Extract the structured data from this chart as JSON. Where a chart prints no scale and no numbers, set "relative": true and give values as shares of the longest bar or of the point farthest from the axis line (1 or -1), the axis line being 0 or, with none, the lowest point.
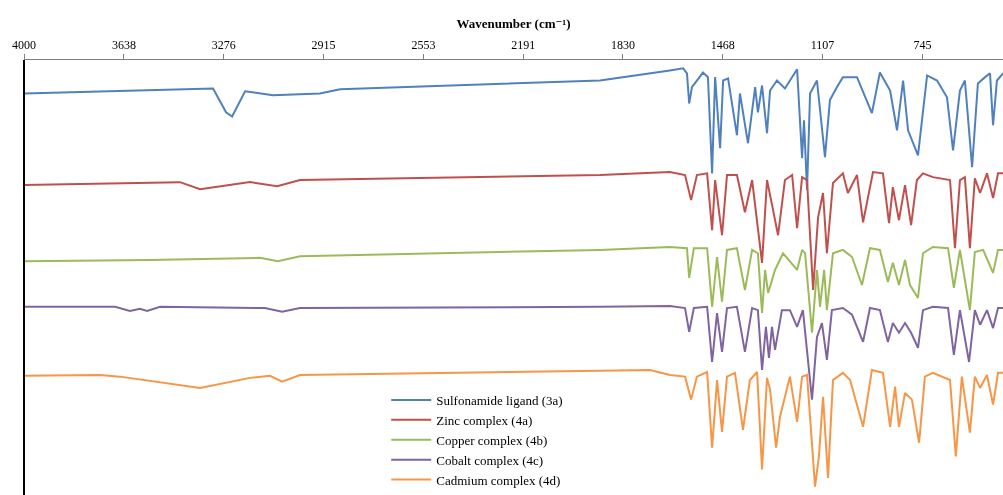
{
  "chart_data": {
    "type": "line",
    "xlabel": "Wavenumber (cm⁻¹)",
    "relative": true,
    "legend": "bottom",
    "xlim": [
      4000,
      453
    ],
    "xticks": [
      4000,
      3638,
      3276,
      2915,
      2553,
      2191,
      1830,
      1468,
      1107,
      745
    ],
    "series": [
      {
        "name": "Sulfonamide ligand (3a)",
        "color": "#4f81bd",
        "x": [
          4000,
          3315,
          3268,
          3246,
          3199,
          3098,
          2928,
          2855,
          1913,
          1660,
          1612,
          1598,
          1590,
          1580,
          1540,
          1522,
          1507,
          1496,
          1478,
          1467,
          1449,
          1417,
          1406,
          1377,
          1351,
          1341,
          1326,
          1308,
          1297,
          1272,
          1243,
          1199,
          1181,
          1174,
          1163,
          1152,
          1127,
          1098,
          1080,
          1055,
          1033,
          982,
          928,
          899,
          862,
          837,
          815,
          797,
          761,
          728,
          692,
          656,
          634,
          609,
          591,
          565,
          544,
          518,
          500,
          489,
          475,
          453
        ],
        "values": [
          0.94,
          0.952,
          0.895,
          0.885,
          0.945,
          0.936,
          0.94,
          0.95,
          0.971,
          0.995,
          1.0,
          0.988,
          0.916,
          0.955,
          0.99,
          0.979,
          0.749,
          0.979,
          0.809,
          0.971,
          0.976,
          0.84,
          0.94,
          0.821,
          0.955,
          0.895,
          0.959,
          0.845,
          0.947,
          0.971,
          0.952,
          0.998,
          0.785,
          0.876,
          0.709,
          0.94,
          0.971,
          0.788,
          0.924,
          0.955,
          0.979,
          0.979,
          0.893,
          0.99,
          0.947,
          0.852,
          0.971,
          0.852,
          0.792,
          0.983,
          0.971,
          0.931,
          0.804,
          0.947,
          0.971,
          0.764,
          0.964,
          0.979,
          0.988,
          0.864,
          0.971,
          0.988
        ]
      },
      {
        "name": "Zinc complex (4a)",
        "color": "#c0504d",
        "x": [
          4000,
          3435,
          3362,
          3181,
          3083,
          3000,
          1913,
          1660,
          1605,
          1583,
          1562,
          1525,
          1507,
          1496,
          1471,
          1453,
          1417,
          1388,
          1362,
          1326,
          1308,
          1286,
          1268,
          1243,
          1217,
          1199,
          1181,
          1163,
          1141,
          1123,
          1105,
          1091,
          1069,
          1033,
          1015,
          982,
          960,
          924,
          888,
          866,
          852,
          830,
          808,
          786,
          765,
          743,
          707,
          645,
          627,
          609,
          591,
          573,
          555,
          536,
          511,
          489,
          471,
          453
        ],
        "values": [
          0.721,
          0.728,
          0.711,
          0.728,
          0.718,
          0.733,
          0.745,
          0.752,
          0.745,
          0.685,
          0.745,
          0.749,
          0.613,
          0.733,
          0.601,
          0.745,
          0.745,
          0.656,
          0.733,
          0.535,
          0.733,
          0.661,
          0.601,
          0.733,
          0.745,
          0.618,
          0.74,
          0.733,
          0.47,
          0.644,
          0.702,
          0.558,
          0.726,
          0.749,
          0.702,
          0.745,
          0.632,
          0.752,
          0.749,
          0.63,
          0.716,
          0.637,
          0.721,
          0.625,
          0.733,
          0.749,
          0.74,
          0.733,
          0.57,
          0.733,
          0.74,
          0.57,
          0.737,
          0.702,
          0.749,
          0.69,
          0.749,
          0.749
        ]
      },
      {
        "name": "Copper complex (4b)",
        "color": "#9bbb59",
        "x": [
          4000,
          3544,
          3145,
          3080,
          3000,
          1913,
          1660,
          1598,
          1590,
          1573,
          1525,
          1507,
          1489,
          1471,
          1453,
          1417,
          1388,
          1362,
          1341,
          1326,
          1315,
          1304,
          1279,
          1250,
          1199,
          1181,
          1170,
          1145,
          1127,
          1116,
          1101,
          1091,
          1069,
          1033,
          1000,
          964,
          935,
          899,
          870,
          852,
          830,
          808,
          790,
          761,
          743,
          707,
          652,
          631,
          609,
          573,
          555,
          525,
          489,
          471,
          453
        ],
        "values": [
          0.539,
          0.542,
          0.547,
          0.539,
          0.551,
          0.566,
          0.573,
          0.57,
          0.499,
          0.57,
          0.57,
          0.43,
          0.549,
          0.442,
          0.566,
          0.57,
          0.47,
          0.566,
          0.558,
          0.415,
          0.518,
          0.463,
          0.518,
          0.558,
          0.518,
          0.566,
          0.558,
          0.368,
          0.518,
          0.43,
          0.518,
          0.422,
          0.558,
          0.566,
          0.549,
          0.482,
          0.57,
          0.566,
          0.489,
          0.535,
          0.482,
          0.542,
          0.482,
          0.451,
          0.558,
          0.573,
          0.57,
          0.475,
          0.566,
          0.422,
          0.561,
          0.566,
          0.511,
          0.566,
          0.566
        ]
      },
      {
        "name": "Cobalt complex (4c)",
        "color": "#8064a2",
        "x": [
          4000,
          3670,
          3616,
          3580,
          3554,
          3507,
          3127,
          3065,
          3000,
          1913,
          1660,
          1605,
          1590,
          1573,
          1525,
          1507,
          1489,
          1471,
          1453,
          1417,
          1388,
          1362,
          1341,
          1326,
          1312,
          1301,
          1290,
          1279,
          1254,
          1225,
          1199,
          1178,
          1145,
          1127,
          1109,
          1091,
          1073,
          1033,
          1000,
          960,
          935,
          899,
          870,
          852,
          830,
          808,
          786,
          761,
          743,
          707,
          652,
          631,
          609,
          576,
          555,
          536,
          511,
          489,
          471,
          453
        ],
        "values": [
          0.43,
          0.43,
          0.42,
          0.425,
          0.42,
          0.43,
          0.427,
          0.418,
          0.427,
          0.43,
          0.432,
          0.427,
          0.37,
          0.427,
          0.43,
          0.298,
          0.415,
          0.322,
          0.427,
          0.43,
          0.322,
          0.427,
          0.422,
          0.279,
          0.382,
          0.308,
          0.382,
          0.327,
          0.422,
          0.422,
          0.382,
          0.422,
          0.208,
          0.358,
          0.391,
          0.303,
          0.422,
          0.427,
          0.411,
          0.346,
          0.427,
          0.422,
          0.346,
          0.391,
          0.368,
          0.391,
          0.368,
          0.332,
          0.422,
          0.43,
          0.427,
          0.315,
          0.422,
          0.298,
          0.422,
          0.387,
          0.422,
          0.379,
          0.427,
          0.427
        ]
      },
      {
        "name": "Cadmium complex (4d)",
        "color": "#f79646",
        "x": [
          4000,
          3725,
          3652,
          3362,
          3181,
          3109,
          3065,
          3000,
          1913,
          1732,
          1678,
          1660,
          1605,
          1583,
          1562,
          1525,
          1507,
          1489,
          1471,
          1453,
          1424,
          1395,
          1370,
          1344,
          1326,
          1308,
          1297,
          1275,
          1261,
          1225,
          1199,
          1181,
          1163,
          1134,
          1120,
          1105,
          1087,
          1069,
          1033,
          1007,
          960,
          928,
          888,
          862,
          844,
          830,
          808,
          783,
          757,
          736,
          707,
          645,
          624,
          602,
          573,
          555,
          536,
          511,
          489,
          471,
          453
        ],
        "values": [
          0.265,
          0.267,
          0.263,
          0.236,
          0.26,
          0.265,
          0.251,
          0.267,
          0.277,
          0.279,
          0.27,
          0.267,
          0.263,
          0.208,
          0.263,
          0.274,
          0.093,
          0.255,
          0.131,
          0.263,
          0.272,
          0.136,
          0.255,
          0.274,
          0.041,
          0.26,
          0.232,
          0.093,
          0.167,
          0.263,
          0.155,
          0.263,
          0.267,
          0,
          0.072,
          0.215,
          0.021,
          0.255,
          0.272,
          0.255,
          0.143,
          0.279,
          0.272,
          0.143,
          0.239,
          0.143,
          0.224,
          0.208,
          0.105,
          0.263,
          0.272,
          0.255,
          0.072,
          0.263,
          0.129,
          0.263,
          0.236,
          0.267,
          0.196,
          0.272,
          0.272
        ]
      }
    ]
  }
}
